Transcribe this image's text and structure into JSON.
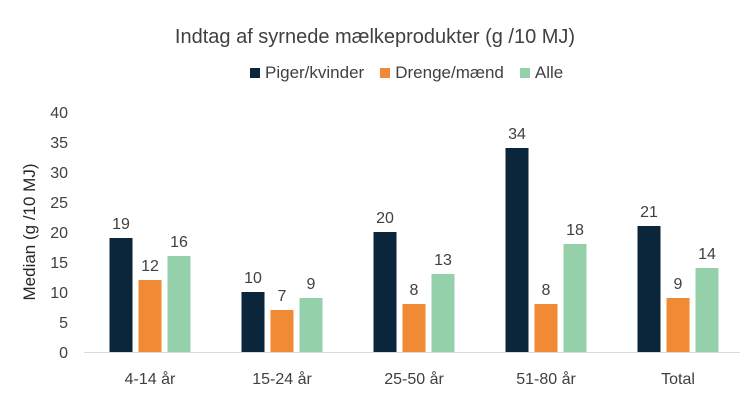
{
  "chart_data": {
    "type": "bar",
    "title": "Indtag af syrnede mælkeprodukter (g /10 MJ)",
    "xlabel": "",
    "ylabel": "Median (g /10 MJ)",
    "ylim": [
      0,
      40
    ],
    "yticks": [
      0,
      5,
      10,
      15,
      20,
      25,
      30,
      35,
      40
    ],
    "ytick_labels": [
      "0",
      "5",
      "10",
      "15",
      "20",
      "25",
      "30",
      "35",
      "40"
    ],
    "grid": false,
    "legend_position": "top",
    "categories": [
      "4-14 år",
      "15-24 år",
      "25-50 år",
      "51-80 år",
      "Total"
    ],
    "series": [
      {
        "name": "Piger/kvinder",
        "color": "#0b253b",
        "values": [
          19,
          10,
          20,
          34,
          21
        ],
        "labels": [
          "19",
          "10",
          "20",
          "34",
          "21"
        ]
      },
      {
        "name": "Drenge/mænd",
        "color": "#f08a34",
        "values": [
          12,
          7,
          8,
          8,
          9
        ],
        "labels": [
          "12",
          "7",
          "8",
          "8",
          "9"
        ]
      },
      {
        "name": "Alle",
        "color": "#94d1aa",
        "values": [
          16,
          9,
          13,
          18,
          14
        ],
        "labels": [
          "16",
          "9",
          "13",
          "18",
          "14"
        ]
      }
    ]
  }
}
